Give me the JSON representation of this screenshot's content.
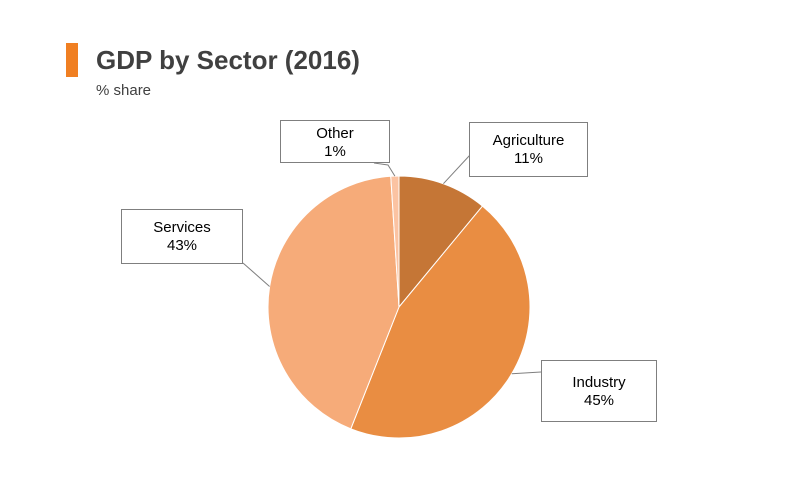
{
  "header": {
    "title": "GDP by Sector (2016)",
    "subtitle": "% share",
    "accent_color": "#f07f22"
  },
  "chart_data": {
    "type": "pie",
    "title": "GDP by Sector (2016)",
    "subtitle": "% share",
    "slices": [
      {
        "label": "Agriculture",
        "value": 11,
        "value_label": "11%",
        "color": "#c57636"
      },
      {
        "label": "Industry",
        "value": 45,
        "value_label": "45%",
        "color": "#e98d42"
      },
      {
        "label": "Services",
        "value": 43,
        "value_label": "43%",
        "color": "#f6ab79"
      },
      {
        "label": "Other",
        "value": 1,
        "value_label": "1%",
        "color": "#fbc3a2"
      }
    ],
    "start_angle": "12 o'clock",
    "direction": "clockwise",
    "label_style": "callout boxes",
    "legend": "none"
  }
}
